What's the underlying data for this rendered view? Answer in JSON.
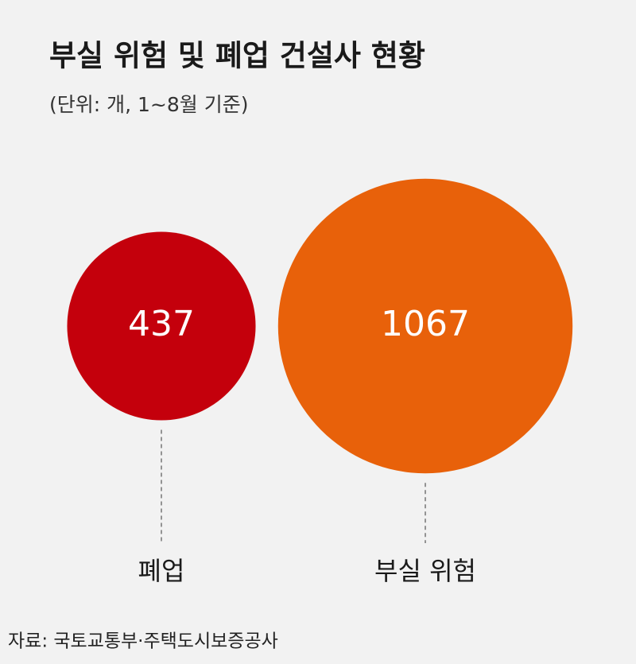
{
  "chart_data": {
    "type": "bubble",
    "title": "부실 위험 및 폐업 건설사 현황",
    "subtitle": "(단위: 개, 1~8월 기준)",
    "categories": [
      "폐업",
      "부실 위험"
    ],
    "values": [
      437,
      1067
    ],
    "colors": [
      "#c4000c",
      "#e8610a"
    ],
    "source": "자료: 국토교통부·주택도시보증공사"
  }
}
